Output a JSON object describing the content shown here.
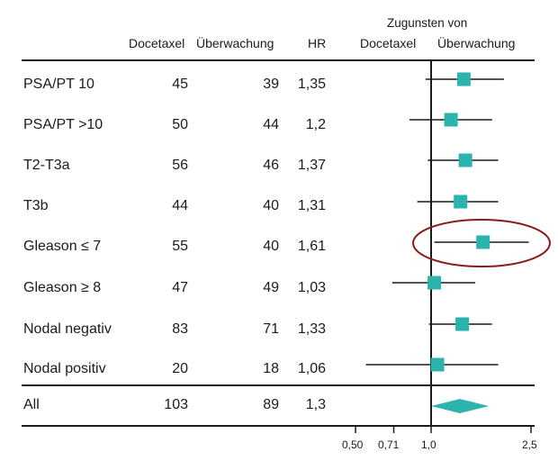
{
  "headers": {
    "col_docetaxel": "Docetaxel",
    "col_watch": "Überwachung",
    "col_hr": "HR",
    "favor_title": "Zugunsten von",
    "favor_left": "Docetaxel",
    "favor_right": "Überwachung"
  },
  "chart_data": {
    "type": "forest",
    "x_scale": "log",
    "reference_line": 1.0,
    "x_ticks": [
      "0,50",
      "0,71",
      "1,0",
      "2,5"
    ],
    "marker_color": "#2bb3ad",
    "highlight_color": "#8b1a1a",
    "highlighted_row": "Gleason ≤ 7",
    "rows": [
      {
        "label": "PSA/PT 10",
        "docetaxel": "45",
        "watch": "39",
        "hr_text": "1,35",
        "hr": 1.35,
        "ci": [
          0.95,
          1.95
        ]
      },
      {
        "label": "PSA/PT >10",
        "docetaxel": "50",
        "watch": "44",
        "hr_text": "1,2",
        "hr": 1.2,
        "ci": [
          0.82,
          1.75
        ]
      },
      {
        "label": "T2-T3a",
        "docetaxel": "56",
        "watch": "46",
        "hr_text": "1,37",
        "hr": 1.37,
        "ci": [
          0.97,
          1.85
        ]
      },
      {
        "label": "T3b",
        "docetaxel": "44",
        "watch": "40",
        "hr_text": "1,31",
        "hr": 1.31,
        "ci": [
          0.88,
          1.85
        ]
      },
      {
        "label": "Gleason ≤ 7",
        "docetaxel": "55",
        "watch": "40",
        "hr_text": "1,61",
        "hr": 1.61,
        "ci": [
          1.03,
          2.45
        ]
      },
      {
        "label": "Gleason ≥ 8",
        "docetaxel": "47",
        "watch": "49",
        "hr_text": "1,03",
        "hr": 1.03,
        "ci": [
          0.7,
          1.5
        ]
      },
      {
        "label": "Nodal negativ",
        "docetaxel": "83",
        "watch": "71",
        "hr_text": "1,33",
        "hr": 1.33,
        "ci": [
          0.98,
          1.75
        ]
      },
      {
        "label": "Nodal positiv",
        "docetaxel": "20",
        "watch": "18",
        "hr_text": "1,06",
        "hr": 1.06,
        "ci": [
          0.55,
          1.85
        ]
      }
    ],
    "overall": {
      "label": "All",
      "docetaxel": "103",
      "watch": "89",
      "hr_text": "1,3",
      "hr": 1.3,
      "ci": [
        1.0,
        1.7
      ]
    }
  }
}
